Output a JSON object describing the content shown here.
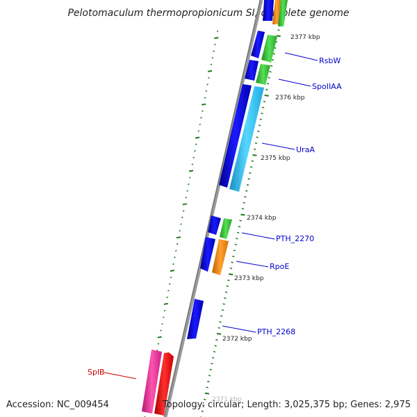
{
  "map": {
    "title": "Pelotomaculum thermopropionicum SI, complete genome",
    "accession": "Accession: NC_009454",
    "summary": "Topology: circular; Length: 3,025,375 bp; Genes: 2,975"
  },
  "scale_labels": [
    "2377 kbp",
    "2376 kbp",
    "2375 kbp",
    "2374 kbp",
    "2373 kbp",
    "2372 kbp",
    "2371 kbp"
  ],
  "genes": [
    {
      "label": "RsbW",
      "color": "#0000cc"
    },
    {
      "label": "SpoIIAA",
      "color": "#0000cc"
    },
    {
      "label": "UraA",
      "color": "#0000cc"
    },
    {
      "label": "PTH_2270",
      "color": "#0000cc"
    },
    {
      "label": "RpoE",
      "color": "#0000cc"
    },
    {
      "label": "PTH_2268",
      "color": "#0000cc"
    },
    {
      "label": "SplB",
      "color": "#cc0000"
    }
  ],
  "colors": {
    "backbone": "#8c8c8c",
    "cds_forward": "#0000e6",
    "blast_green": "#3ccc3c",
    "blast_cyan": "#33ccff",
    "blast_orange": "#ff8c00",
    "blast_magenta": "#ee3399",
    "blast_red": "#ee0000",
    "tick": "#1a7a1a"
  }
}
